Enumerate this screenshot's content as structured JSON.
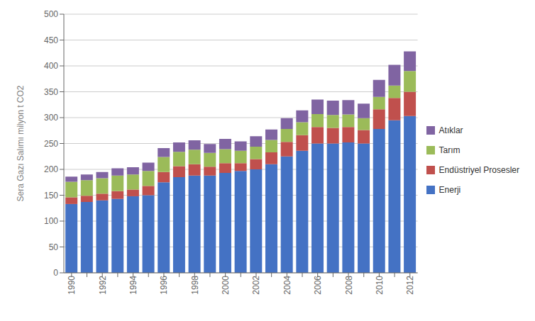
{
  "chart_data": {
    "type": "bar",
    "stacked": true,
    "ylabel": "Sera Gazı Salımı milyon t CO2",
    "categories": [
      "1990",
      null,
      "1992",
      null,
      "1994",
      null,
      "1996",
      null,
      "1998",
      null,
      "2000",
      null,
      "2002",
      null,
      "2004",
      null,
      "2006",
      null,
      "2008",
      null,
      "2010",
      null,
      "2012"
    ],
    "series": [
      {
        "name": "Enerji",
        "color": "#4472C4",
        "values": [
          133,
          137,
          140,
          143,
          148,
          150,
          175,
          185,
          188,
          188,
          193,
          197,
          200,
          210,
          225,
          236,
          250,
          250,
          252,
          250,
          278,
          295,
          303
        ]
      },
      {
        "name": "Endüstriyel Prosesler",
        "color": "#C0504D",
        "values": [
          13,
          12,
          13,
          15,
          13,
          18,
          20,
          21,
          22,
          17,
          19,
          15,
          20,
          23,
          28,
          30,
          32,
          30,
          30,
          26,
          38,
          43,
          47
        ]
      },
      {
        "name": "Tarım",
        "color": "#9BBB59",
        "values": [
          30,
          30,
          30,
          30,
          29,
          29,
          29,
          28,
          28,
          27,
          27,
          24,
          24,
          24,
          25,
          25,
          25,
          25,
          24,
          23,
          24,
          24,
          40
        ]
      },
      {
        "name": "Atıklar",
        "color": "#8064A2",
        "values": [
          10,
          11,
          12,
          14,
          14,
          16,
          17,
          18,
          18,
          17,
          20,
          18,
          20,
          20,
          21,
          23,
          28,
          28,
          28,
          28,
          33,
          40,
          38
        ]
      }
    ],
    "ylim": [
      0,
      500
    ],
    "yticks": [
      0,
      50,
      100,
      150,
      200,
      250,
      300,
      350,
      400,
      450,
      500
    ],
    "grid": true,
    "legend": "right"
  }
}
